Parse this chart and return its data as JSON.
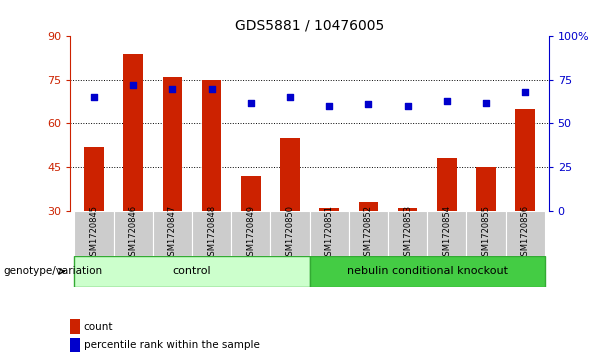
{
  "title": "GDS5881 / 10476005",
  "samples": [
    "GSM1720845",
    "GSM1720846",
    "GSM1720847",
    "GSM1720848",
    "GSM1720849",
    "GSM1720850",
    "GSM1720851",
    "GSM1720852",
    "GSM1720853",
    "GSM1720854",
    "GSM1720855",
    "GSM1720856"
  ],
  "counts": [
    52,
    84,
    76,
    75,
    42,
    55,
    31,
    33,
    31,
    48,
    45,
    65
  ],
  "percentiles": [
    65,
    72,
    70,
    70,
    62,
    65,
    60,
    61,
    60,
    63,
    62,
    68
  ],
  "bar_color": "#cc2200",
  "dot_color": "#0000cc",
  "ylim_left": [
    30,
    90
  ],
  "ylim_right": [
    0,
    100
  ],
  "yticks_left": [
    30,
    45,
    60,
    75,
    90
  ],
  "yticks_right": [
    0,
    25,
    50,
    75,
    100
  ],
  "ytick_labels_right": [
    "0",
    "25",
    "50",
    "75",
    "100%"
  ],
  "gridlines": [
    45,
    60,
    75
  ],
  "n_control": 6,
  "n_knockout": 6,
  "control_label": "control",
  "knockout_label": "nebulin conditional knockout",
  "genotype_label": "genotype/variation",
  "control_color": "#ccffcc",
  "knockout_color": "#44cc44",
  "sample_box_color": "#cccccc",
  "legend_count_label": "count",
  "legend_percentile_label": "percentile rank within the sample",
  "bar_width": 0.5,
  "title_fontsize": 10,
  "tick_fontsize": 8,
  "label_fontsize": 8
}
